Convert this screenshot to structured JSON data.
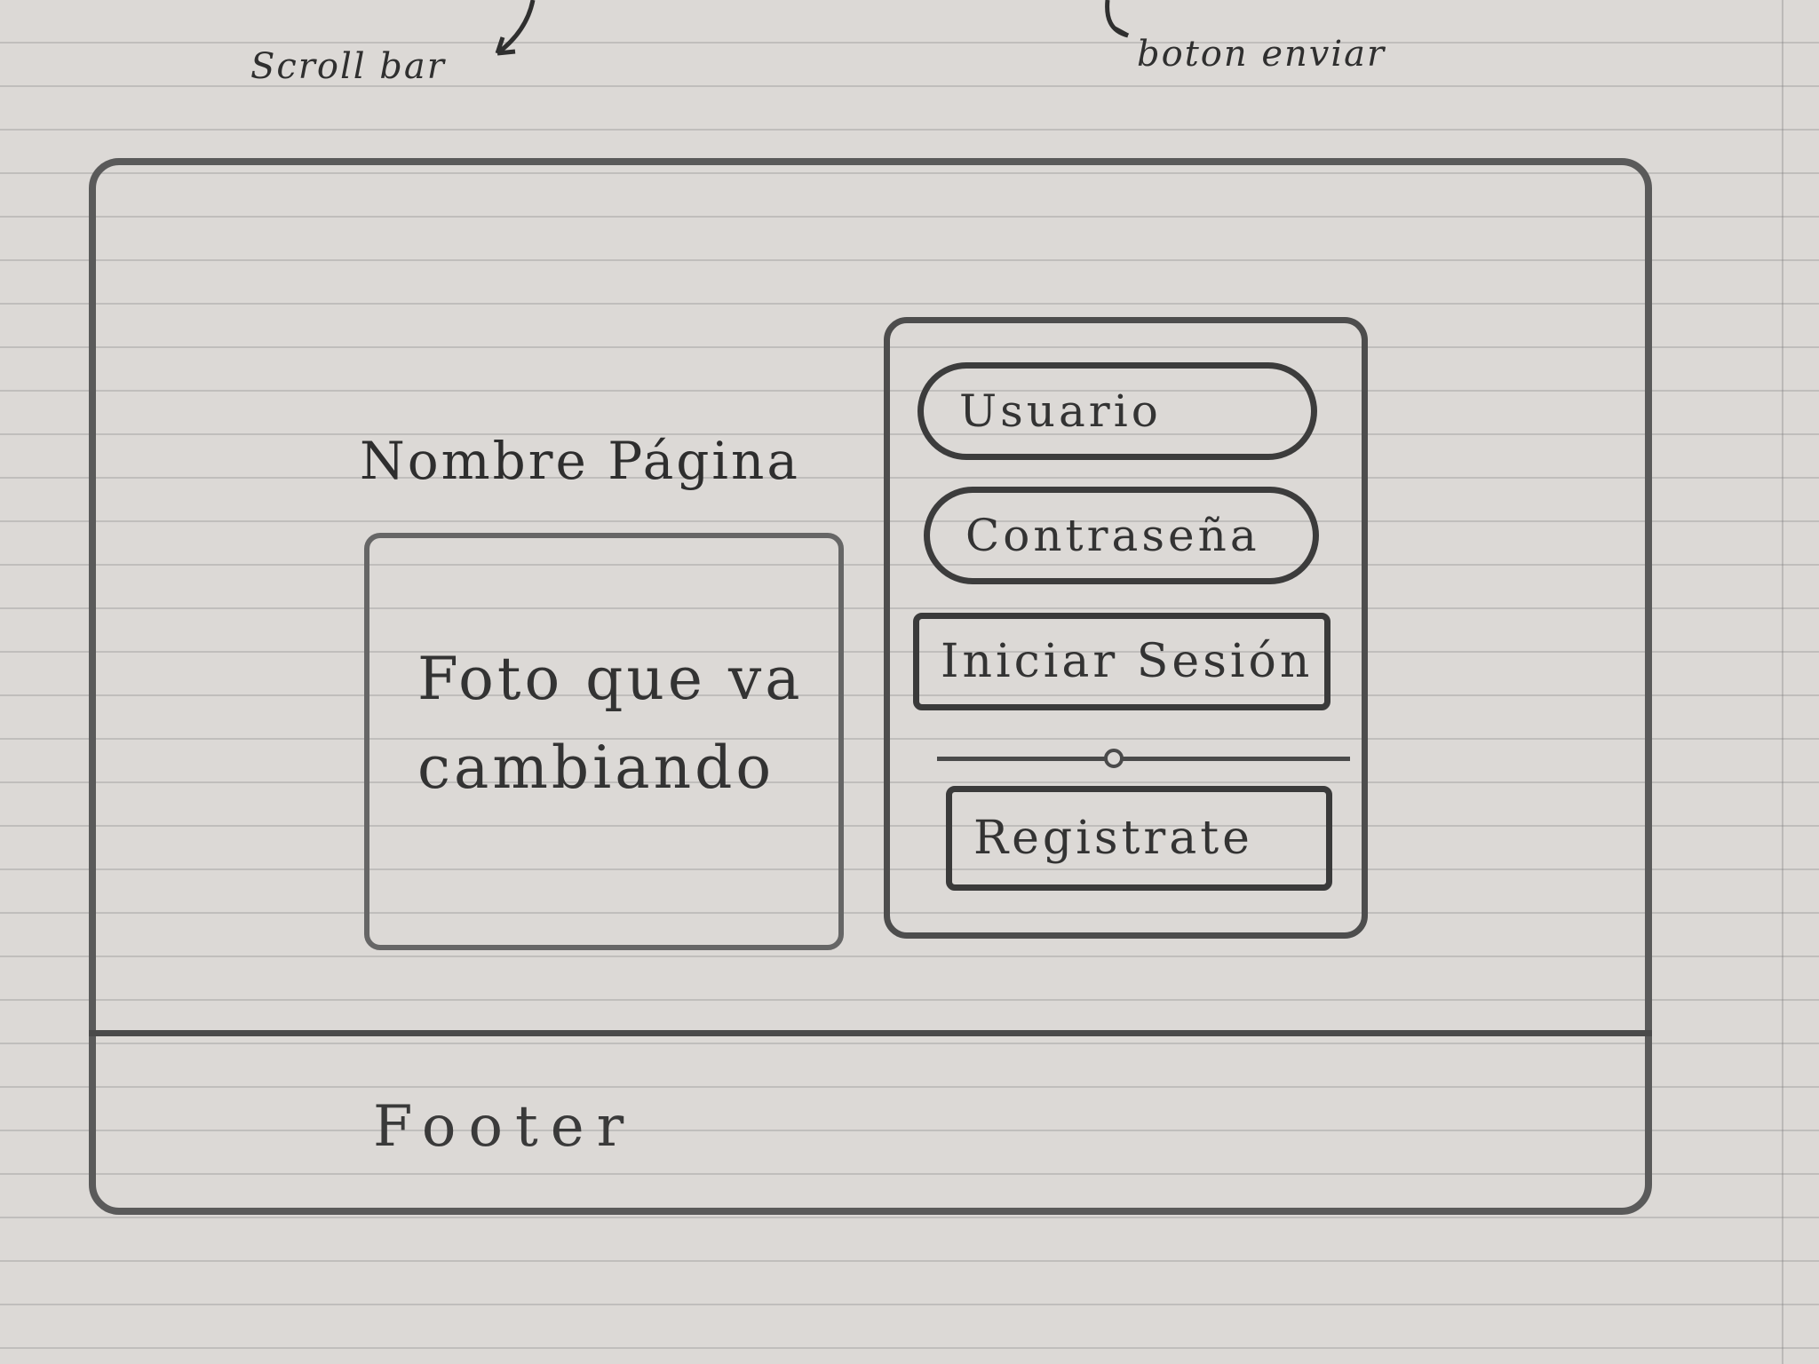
{
  "annotations": {
    "scrollbar": "Scroll bar",
    "send_button": "boton enviar"
  },
  "page": {
    "name": "Nombre Página",
    "photo_text": "Foto que va cambiando",
    "footer": "Footer"
  },
  "login": {
    "user_field": "Usuario",
    "password_field": "Contraseña",
    "login_button": "Iniciar Sesión",
    "divider": "o",
    "register_button": "Registrate"
  }
}
